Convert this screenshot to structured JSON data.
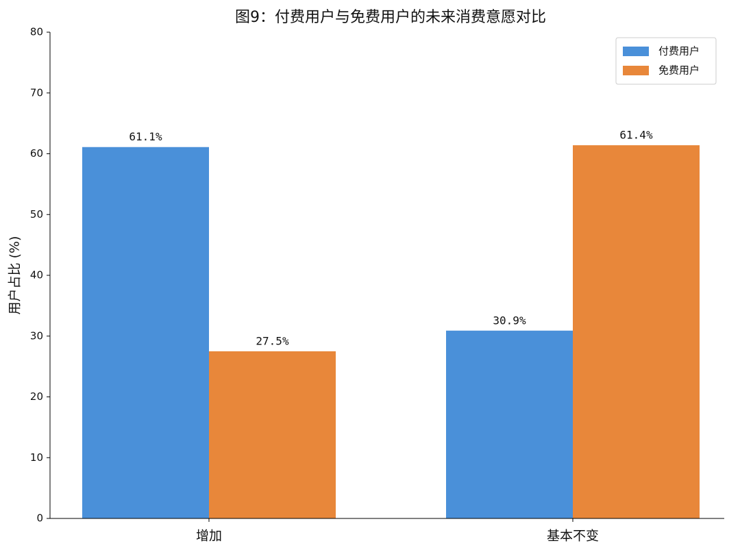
{
  "chart_data": {
    "type": "bar",
    "title": "图9：付费用户与免费用户的未来消费意愿对比",
    "y_label": "用户占比 (%)",
    "categories": [
      "增加",
      "基本不变"
    ],
    "series": [
      {
        "name": "付费用户",
        "color": "#4a90d9",
        "values": [
          61.1,
          30.9
        ],
        "value_labels": [
          "61.1%",
          "30.9%"
        ]
      },
      {
        "name": "免费用户",
        "color": "#e8873a",
        "values": [
          27.5,
          61.4
        ],
        "value_labels": [
          "27.5%",
          "61.4%"
        ]
      }
    ],
    "ylim": [
      0,
      80
    ],
    "yticks": [
      0,
      10,
      20,
      30,
      40,
      50,
      60,
      70,
      80
    ],
    "legend": "upper right",
    "grid": false
  }
}
